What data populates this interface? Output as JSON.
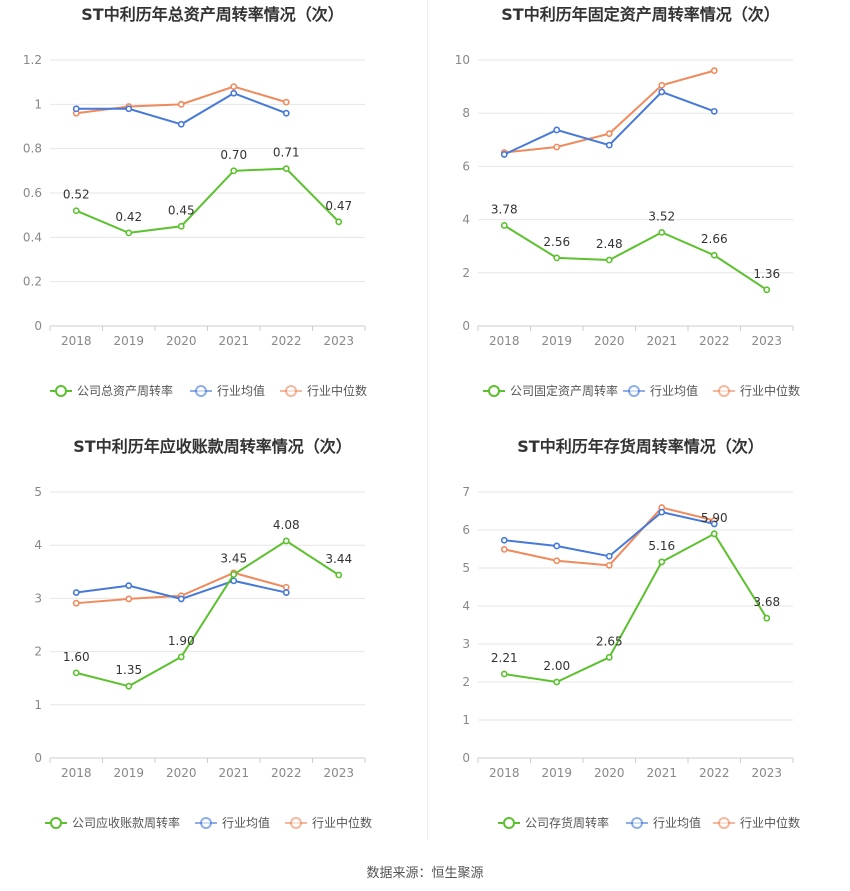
{
  "footer": {
    "source": "数据来源：恒生聚源"
  },
  "colors": {
    "company": "#5cc12e",
    "industry_avg": "#4679d8",
    "industry_median": "#f08a5d",
    "grid": "#e6e6e6",
    "axis_text": "#888888"
  },
  "chart_data": [
    {
      "type": "line",
      "title": "ST中利历年总资产周转率情况（次）",
      "categories": [
        "2018",
        "2019",
        "2020",
        "2021",
        "2022",
        "2023"
      ],
      "ylim": [
        0,
        1.2
      ],
      "yticks": [
        "0",
        "0.2",
        "0.4",
        "0.6",
        "0.8",
        "1",
        "1.2"
      ],
      "series": [
        {
          "name": "公司总资产周转率",
          "role": "company",
          "values": [
            0.52,
            0.42,
            0.45,
            0.7,
            0.71,
            0.47
          ],
          "labels": [
            "0.52",
            "0.42",
            "0.45",
            "0.70",
            "0.71",
            "0.47"
          ]
        },
        {
          "name": "行业均值",
          "role": "industry_avg",
          "values": [
            0.98,
            0.98,
            0.91,
            1.05,
            0.96,
            null
          ]
        },
        {
          "name": "行业中位数",
          "role": "industry_median",
          "values": [
            0.96,
            0.99,
            1.0,
            1.08,
            1.01,
            null
          ]
        }
      ],
      "legend": "bottom"
    },
    {
      "type": "line",
      "title": "ST中利历年固定资产周转率情况（次）",
      "categories": [
        "2018",
        "2019",
        "2020",
        "2021",
        "2022",
        "2023"
      ],
      "ylim": [
        0,
        10
      ],
      "yticks": [
        "0",
        "2",
        "4",
        "6",
        "8",
        "10"
      ],
      "series": [
        {
          "name": "公司固定资产周转率",
          "role": "company",
          "values": [
            3.78,
            2.56,
            2.48,
            3.52,
            2.66,
            1.36
          ],
          "labels": [
            "3.78",
            "2.56",
            "2.48",
            "3.52",
            "2.66",
            "1.36"
          ]
        },
        {
          "name": "行业均值",
          "role": "industry_avg",
          "values": [
            6.45,
            7.37,
            6.8,
            8.8,
            8.07,
            null
          ]
        },
        {
          "name": "行业中位数",
          "role": "industry_median",
          "values": [
            6.52,
            6.73,
            7.23,
            9.05,
            9.6,
            null
          ]
        }
      ],
      "legend": "bottom"
    },
    {
      "type": "line",
      "title": "ST中利历年应收账款周转率情况（次）",
      "categories": [
        "2018",
        "2019",
        "2020",
        "2021",
        "2022",
        "2023"
      ],
      "ylim": [
        0,
        5
      ],
      "yticks": [
        "0",
        "1",
        "2",
        "3",
        "4",
        "5"
      ],
      "series": [
        {
          "name": "公司应收账款周转率",
          "role": "company",
          "values": [
            1.6,
            1.35,
            1.9,
            3.45,
            4.08,
            3.44
          ],
          "labels": [
            "1.60",
            "1.35",
            "1.90",
            "3.45",
            "4.08",
            "3.44"
          ]
        },
        {
          "name": "行业均值",
          "role": "industry_avg",
          "values": [
            3.11,
            3.24,
            2.99,
            3.33,
            3.11,
            null
          ]
        },
        {
          "name": "行业中位数",
          "role": "industry_median",
          "values": [
            2.91,
            2.99,
            3.05,
            3.48,
            3.21,
            null
          ]
        }
      ],
      "legend": "bottom"
    },
    {
      "type": "line",
      "title": "ST中利历年存货周转率情况（次）",
      "categories": [
        "2018",
        "2019",
        "2020",
        "2021",
        "2022",
        "2023"
      ],
      "ylim": [
        0,
        7
      ],
      "yticks": [
        "0",
        "1",
        "2",
        "3",
        "4",
        "5",
        "6",
        "7"
      ],
      "series": [
        {
          "name": "公司存货周转率",
          "role": "company",
          "values": [
            2.21,
            2.0,
            2.65,
            5.16,
            5.9,
            3.68
          ],
          "labels": [
            "2.21",
            "2.00",
            "2.65",
            "5.16",
            "5.90",
            "3.68"
          ]
        },
        {
          "name": "行业均值",
          "role": "industry_avg",
          "values": [
            5.73,
            5.58,
            5.31,
            6.47,
            6.16,
            null
          ]
        },
        {
          "name": "行业中位数",
          "role": "industry_median",
          "values": [
            5.49,
            5.19,
            5.07,
            6.59,
            6.25,
            null
          ]
        }
      ],
      "legend": "bottom"
    }
  ]
}
